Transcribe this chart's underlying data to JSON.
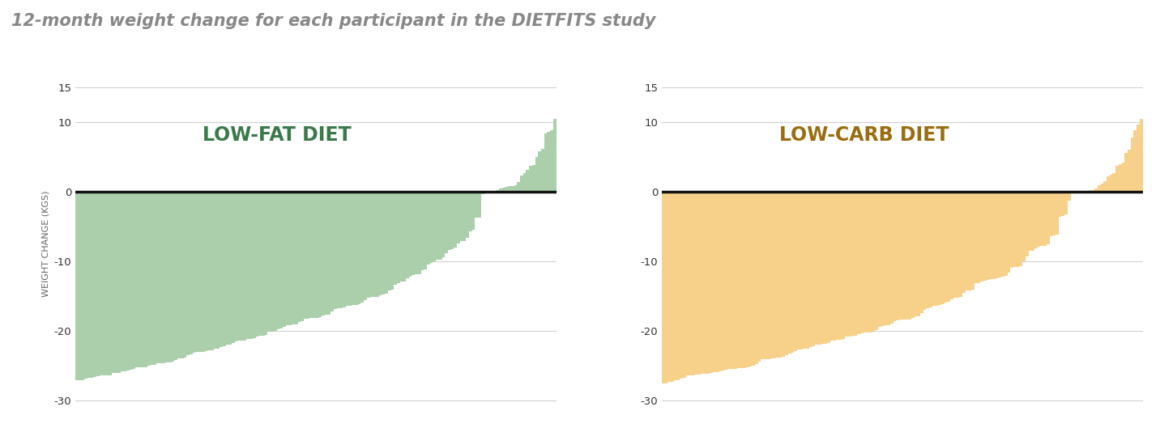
{
  "title": "12-month weight change for each participant in the DIETFITS study",
  "title_color": "#888888",
  "title_fontsize": 15,
  "title_style": "italic",
  "title_weight": "bold",
  "ylabel": "WEIGHT CHANGE (KGS)",
  "ylabel_fontsize": 8,
  "ylim": [
    -32,
    17
  ],
  "yticks": [
    -30,
    -20,
    -10,
    0,
    10,
    15
  ],
  "n_participants": 160,
  "lowfat_label": "LOW-FAT DIET",
  "lowcarb_label": "LOW-CARB DIET",
  "lowfat_color": "#aacfaa",
  "lowfat_edge_color": "#95be95",
  "lowcarb_color": "#f7d08a",
  "lowcarb_edge_color": "#e8b86d",
  "lowfat_label_color": "#3a7a4a",
  "lowcarb_label_color": "#9a6e10",
  "label_fontsize": 17,
  "zeroline_color": "#111111",
  "zeroline_lw": 2.5,
  "background_color": "#ffffff",
  "grid_color": "#d0d0d0",
  "grid_lw": 0.8,
  "bar_width": 1.0,
  "lowfat_min": -27.0,
  "lowfat_max": 10.5,
  "lowcarb_min": -27.5,
  "lowcarb_max": 10.5,
  "fig_width": 14.32,
  "fig_height": 5.34
}
